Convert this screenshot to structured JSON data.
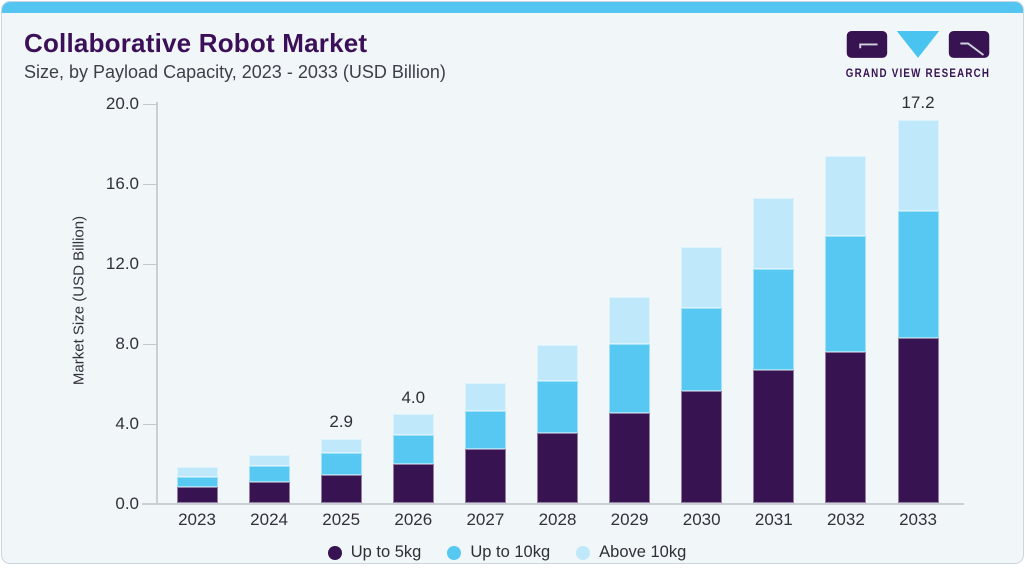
{
  "header": {
    "title": "Collaborative Robot Market",
    "subtitle": "Size, by Payload Capacity, 2023 - 2033 (USD Billion)"
  },
  "logo": {
    "text": "GRAND VIEW RESEARCH",
    "purple": "#371352",
    "blue": "#49c3f0"
  },
  "chart_data": {
    "type": "bar",
    "stacked": true,
    "title": "Collaborative Robot Market Size, by Payload Capacity, 2023 - 2033 (USD Billion)",
    "categories": [
      "2023",
      "2024",
      "2025",
      "2026",
      "2027",
      "2028",
      "2029",
      "2030",
      "2031",
      "2032",
      "2033"
    ],
    "series": [
      {
        "name": "Up to 5kg",
        "color": "#371352",
        "values": [
          0.7,
          0.95,
          1.25,
          1.75,
          2.4,
          3.15,
          4.05,
          5.0,
          5.95,
          6.75,
          7.4
        ]
      },
      {
        "name": "Up to 10kg",
        "color": "#57c8f2",
        "values": [
          0.45,
          0.7,
          1.0,
          1.3,
          1.75,
          2.35,
          3.1,
          3.75,
          4.55,
          5.2,
          5.7
        ]
      },
      {
        "name": "Above 10kg",
        "color": "#bfe8fa",
        "values": [
          0.45,
          0.5,
          0.65,
          0.95,
          1.25,
          1.6,
          2.1,
          2.75,
          3.2,
          3.6,
          4.1
        ]
      }
    ],
    "totals": [
      1.6,
      2.15,
      2.9,
      4.0,
      5.4,
      7.1,
      9.25,
      11.5,
      13.7,
      15.55,
      17.2
    ],
    "data_labels": {
      "2025": "2.9",
      "2026": "4.0",
      "2033": "17.2"
    },
    "xlabel": "",
    "ylabel": "Market Size (USD Billion)",
    "y_ticks": [
      {
        "value": 0,
        "label": "0.0"
      },
      {
        "value": 4,
        "label": "4.0"
      },
      {
        "value": 8,
        "label": "8.0"
      },
      {
        "value": 12,
        "label": "12.0"
      },
      {
        "value": 16,
        "label": "16.0"
      },
      {
        "value": 20,
        "label": "20.0"
      }
    ],
    "ylim": [
      0,
      20
    ],
    "grid": false,
    "legend_position": "bottom"
  }
}
